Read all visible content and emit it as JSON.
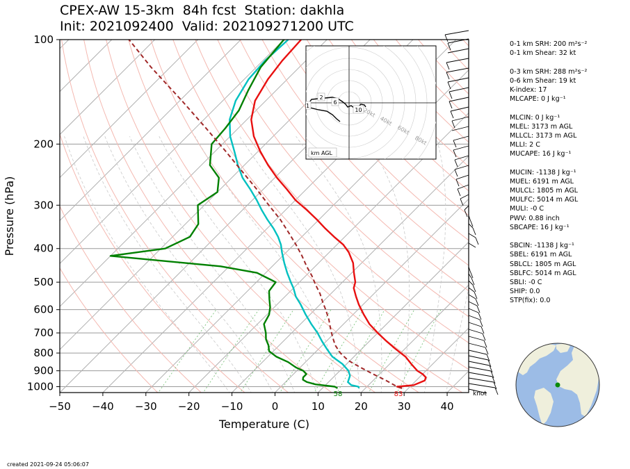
{
  "header": {
    "title_line1": "CPEX-AW 15-3km  84h fcst  Station: dakhla",
    "title_line2": "Init: 2021092400  Valid: 202109271200 UTC"
  },
  "footer": {
    "created": "created 2021-09-24 05:06:07"
  },
  "stats": [
    "0-1 km SRH: 200 m²s⁻²",
    "0-1 km Shear: 32 kt",
    "",
    "0-3 km SRH: 288 m²s⁻²",
    "0-6 km Shear: 19 kt",
    "K-index: 17",
    "MLCAPE: 0 J kg⁻¹",
    "",
    "MLCIN: 0 J kg⁻¹",
    "MLEL: 3173 m AGL",
    "MLLCL: 3173 m AGL",
    "MLLI: 2 C",
    "MUCAPE: 16 J kg⁻¹",
    "",
    "MUCIN: -1138 J kg⁻¹",
    "MUEL: 6191 m AGL",
    "MULCL: 1805 m AGL",
    "MULFC: 5014 m AGL",
    "MULI: -0 C",
    "PWV: 0.88 inch",
    "SBCAPE: 16 J kg⁻¹",
    "",
    "SBCIN: -1138 J kg⁻¹",
    "SBEL: 6191 m AGL",
    "SBLCL: 1805 m AGL",
    "SBLFC: 5014 m AGL",
    "SBLI: -0 C",
    "SHIP: 0.0",
    "STP(fix): 0.0"
  ],
  "hodograph": {
    "legend": "km AGL",
    "height_labels": [
      "1",
      "2",
      "6",
      "10"
    ],
    "ring_labels": [
      "20kt",
      "40kt",
      "60kt",
      "80kt"
    ]
  },
  "globe": {
    "land_color": "#efefdc",
    "ocean_color": "#9cbce6",
    "station_color": "#0a8a0a"
  },
  "chart_data": {
    "type": "line",
    "title": "",
    "xlabel": "Temperature (C)",
    "ylabel": "Pressure (hPa)",
    "xlim": [
      -50,
      45
    ],
    "ylim": [
      1040,
      100
    ],
    "y_scale": "log",
    "x_ticks": [
      -50,
      -40,
      -30,
      -20,
      -10,
      0,
      10,
      20,
      30,
      40
    ],
    "y_ticks": [
      1000,
      900,
      800,
      700,
      600,
      500,
      400,
      300,
      200,
      100
    ],
    "x_tick_labels": [
      "−50",
      "−40",
      "−30",
      "−20",
      "−10",
      "0",
      "10",
      "20",
      "30",
      "40"
    ],
    "y_tick_labels": [
      "1000",
      "900",
      "800",
      "700",
      "600",
      "500",
      "400",
      "300",
      "200",
      "100"
    ],
    "wind_units": "knot",
    "surface_labels": {
      "dewpoint": "58",
      "temperature": "83"
    },
    "series": [
      {
        "color": "#e81010",
        "pressure": [
          1010,
          1000,
          990,
          960,
          940,
          920,
          900,
          860,
          820,
          780,
          740,
          700,
          660,
          620,
          580,
          550,
          520,
          500,
          470,
          440,
          410,
          390,
          370,
          350,
          330,
          310,
          290,
          270,
          250,
          230,
          210,
          190,
          170,
          150,
          130,
          115,
          100
        ],
        "temperature": [
          28.5,
          27.0,
          30.5,
          32.0,
          31.5,
          30.0,
          28.0,
          25.0,
          22.0,
          18.0,
          14.0,
          10.0,
          6.0,
          2.5,
          -1.0,
          -3.5,
          -6.0,
          -7.0,
          -9.5,
          -12.0,
          -15.5,
          -18.5,
          -22.5,
          -26.5,
          -30.5,
          -35.0,
          -40.0,
          -44.5,
          -49.5,
          -54.5,
          -59.5,
          -64.5,
          -69.0,
          -72.5,
          -74.5,
          -75.5,
          -76.0
        ]
      },
      {
        "color": "#00c0c0",
        "pressure": [
          1010,
          1000,
          990,
          970,
          950,
          930,
          900,
          860,
          820,
          780,
          740,
          700,
          660,
          620,
          580,
          550,
          520,
          500,
          470,
          440,
          410,
          390,
          370,
          350,
          330,
          310,
          290,
          270,
          250,
          230,
          210,
          190,
          170,
          150,
          130,
          115,
          100
        ],
        "temperature": [
          18.5,
          18.0,
          16.0,
          14.5,
          14.0,
          13.5,
          12.0,
          9.0,
          5.0,
          2.0,
          -1.0,
          -4.0,
          -7.5,
          -11.0,
          -14.5,
          -17.5,
          -20.0,
          -22.0,
          -25.0,
          -28.0,
          -31.0,
          -33.0,
          -35.5,
          -38.5,
          -42.0,
          -45.5,
          -49.0,
          -53.0,
          -57.5,
          -61.5,
          -65.5,
          -70.0,
          -74.0,
          -77.0,
          -79.0,
          -79.5,
          -79.0
        ]
      },
      {
        "color": "#008000",
        "pressure": [
          1010,
          1000,
          985,
          970,
          955,
          940,
          920,
          900,
          880,
          850,
          820,
          790,
          760,
          730,
          700,
          660,
          620,
          590,
          560,
          530,
          500,
          470,
          450,
          420,
          400,
          370,
          340,
          300,
          275,
          250,
          230,
          200,
          180,
          160,
          140,
          120,
          100
        ],
        "temperature": [
          13.5,
          12.5,
          7.5,
          5.0,
          3.5,
          3.0,
          3.0,
          1.5,
          -1.0,
          -4.0,
          -8.0,
          -11.0,
          -12.5,
          -14.5,
          -16.0,
          -18.5,
          -19.5,
          -21.0,
          -23.0,
          -25.0,
          -25.5,
          -32.0,
          -42.0,
          -70.0,
          -59.0,
          -56.0,
          -57.0,
          -61.5,
          -60.0,
          -63.0,
          -68.0,
          -72.5,
          -73.0,
          -74.0,
          -76.5,
          -79.0,
          -80.0
        ]
      },
      {
        "color": "#a02828",
        "pressure": [
          1010,
          1000,
          960,
          920,
          880,
          840,
          800,
          760,
          720,
          680,
          640,
          600,
          570,
          540,
          510,
          480,
          450,
          420,
          390,
          360,
          330,
          300,
          270,
          240,
          210,
          180,
          150,
          120,
          100
        ],
        "temperature": [
          28.5,
          27.0,
          23.0,
          18.5,
          14.0,
          9.5,
          6.0,
          3.0,
          0.5,
          -2.0,
          -4.5,
          -7.5,
          -10.0,
          -12.5,
          -15.5,
          -18.5,
          -22.0,
          -25.5,
          -29.5,
          -34.0,
          -39.0,
          -45.0,
          -51.5,
          -59.0,
          -67.5,
          -77.5,
          -89.5,
          -104.5,
          -116.0
        ]
      }
    ]
  }
}
